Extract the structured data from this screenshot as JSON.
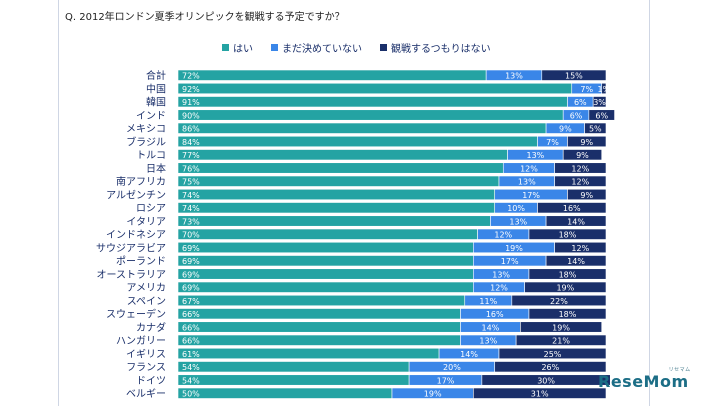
{
  "question": "Q. 2012年ロンドン夏季オリンピックを観戦する予定ですか？",
  "watermark": {
    "text": "ReseMom",
    "sub": "リセマム"
  },
  "colors": {
    "yes": "#24a3a3",
    "undecided": "#3a86e8",
    "no": "#1a2f6a",
    "label": "#1a2f6a"
  },
  "chart_data": {
    "type": "bar",
    "orientation": "horizontal",
    "stacked": true,
    "xlim": [
      0,
      100
    ],
    "categories": [
      "合計",
      "中国",
      "韓国",
      "インド",
      "メキシコ",
      "ブラジル",
      "トルコ",
      "日本",
      "南アフリカ",
      "アルゼンチン",
      "ロシア",
      "イタリア",
      "インドネシア",
      "サウジアラビア",
      "ポーランド",
      "オーストラリア",
      "アメリカ",
      "スペイン",
      "スウェーデン",
      "カナダ",
      "ハンガリー",
      "イギリス",
      "フランス",
      "ドイツ",
      "ベルギー"
    ],
    "series": [
      {
        "name": "はい",
        "values": [
          72,
          92,
          91,
          90,
          86,
          84,
          77,
          76,
          75,
          74,
          74,
          73,
          70,
          69,
          69,
          69,
          69,
          67,
          66,
          66,
          66,
          61,
          54,
          54,
          50
        ]
      },
      {
        "name": "まだ決めていない",
        "values": [
          13,
          7,
          6,
          6,
          9,
          7,
          13,
          12,
          13,
          17,
          10,
          13,
          12,
          19,
          17,
          13,
          12,
          11,
          16,
          14,
          13,
          14,
          20,
          17,
          19
        ]
      },
      {
        "name": "観戦するつもりはない",
        "values": [
          15,
          1,
          3,
          6,
          5,
          9,
          9,
          12,
          12,
          9,
          16,
          14,
          18,
          12,
          14,
          18,
          19,
          22,
          18,
          19,
          21,
          25,
          26,
          30,
          31
        ]
      }
    ]
  }
}
